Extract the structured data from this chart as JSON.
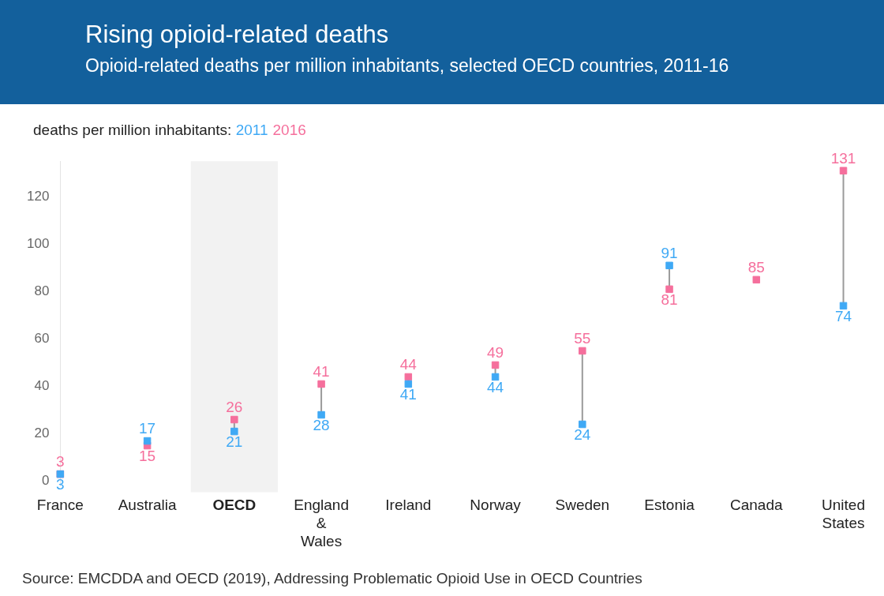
{
  "chart_data": {
    "type": "scatter",
    "title": "Rising opioid-related deaths",
    "subtitle": "Opioid-related deaths per million inhabitants, selected OECD countries, 2011-16",
    "legend_title": "deaths per million inhabitants:",
    "categories": [
      "France",
      "Australia",
      "OECD",
      "England & Wales",
      "Ireland",
      "Norway",
      "Sweden",
      "Estonia",
      "Canada",
      "United States"
    ],
    "series": [
      {
        "name": "2011",
        "color": "#3fa9f5",
        "values": [
          3,
          17,
          21,
          28,
          41,
          44,
          24,
          91,
          null,
          74
        ]
      },
      {
        "name": "2016",
        "color": "#f56f9c",
        "values": [
          3,
          15,
          26,
          41,
          44,
          49,
          55,
          81,
          85,
          131
        ]
      }
    ],
    "marker": "square",
    "data_labels": true,
    "grid": false,
    "ylim": [
      -2,
      135
    ],
    "yticks": [
      0,
      20,
      40,
      60,
      80,
      100,
      120
    ],
    "bands": [
      {
        "axis": "x",
        "from": "OECD",
        "to": "OECD",
        "color": "#f2f2f2"
      }
    ],
    "annotations": [
      "Source: EMCDDA and OECD (2019), Addressing Problematic Opioid Use in OECD Countries"
    ]
  }
}
